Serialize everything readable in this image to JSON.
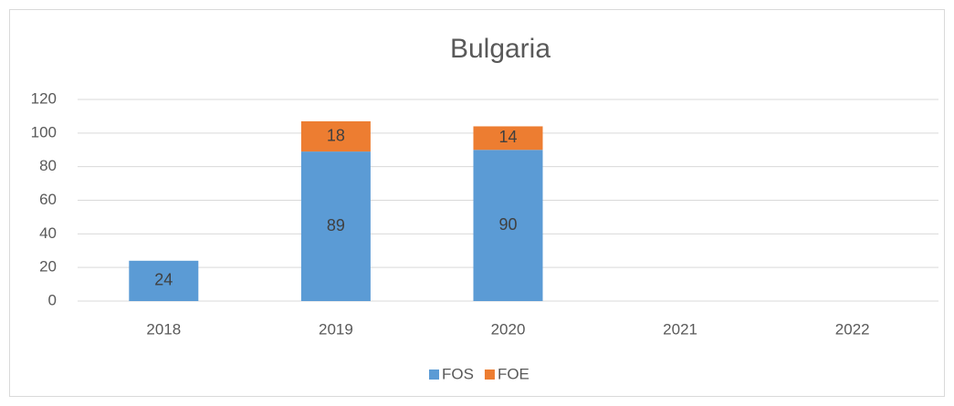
{
  "chart_data": {
    "type": "bar",
    "stacked": true,
    "title": "Bulgaria",
    "categories": [
      "2018",
      "2019",
      "2020",
      "2021",
      "2022"
    ],
    "series": [
      {
        "name": "FOS",
        "color": "#5b9bd5",
        "values": [
          24,
          89,
          90,
          null,
          null
        ]
      },
      {
        "name": "FOE",
        "color": "#ed7d31",
        "values": [
          null,
          18,
          14,
          null,
          null
        ]
      }
    ],
    "ylim": [
      0,
      120
    ],
    "yticks": [
      0,
      20,
      40,
      60,
      80,
      100,
      120
    ],
    "grid": true,
    "legend": "bottom"
  }
}
